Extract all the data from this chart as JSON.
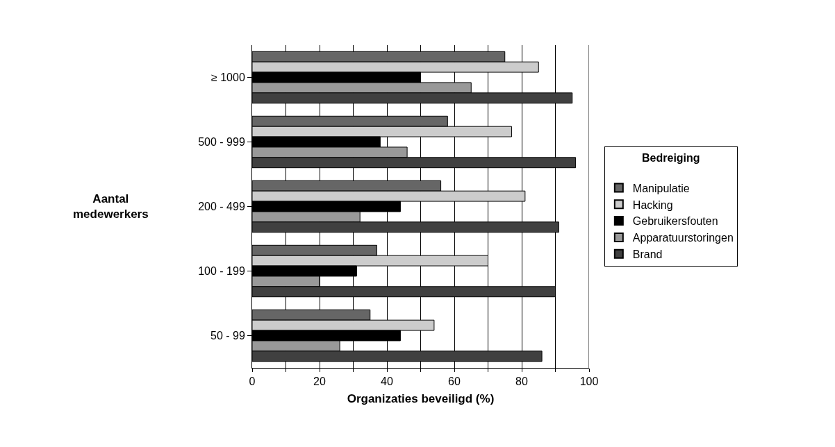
{
  "chart_data": {
    "type": "bar",
    "orientation": "horizontal",
    "xlabel": "Organizaties beveiligd (%)",
    "ylabel": "Aantal\nmedewerkers",
    "legend_title": "Bedreiging",
    "categories": [
      "≥ 1000",
      "500 - 999",
      "200 - 499",
      "100 - 199",
      "50 - 99"
    ],
    "series": [
      {
        "name": "Manipulatie",
        "color": "#666666",
        "values": [
          75,
          58,
          56,
          37,
          35
        ]
      },
      {
        "name": "Hacking",
        "color": "#cccccc",
        "values": [
          85,
          77,
          81,
          70,
          54
        ]
      },
      {
        "name": "Gebruikersfouten",
        "color": "#000000",
        "values": [
          50,
          38,
          44,
          31,
          44
        ]
      },
      {
        "name": "Apparatuurstoringen",
        "color": "#999999",
        "values": [
          65,
          46,
          32,
          20,
          26
        ]
      },
      {
        "name": "Brand",
        "color": "#404040",
        "values": [
          95,
          96,
          91,
          90,
          86
        ]
      }
    ],
    "xlim": [
      0,
      100
    ],
    "xticks": [
      0,
      {
        "value": 10,
        "label": null
      },
      20,
      {
        "value": 30,
        "label": null
      },
      40,
      {
        "value": 50,
        "label": null
      },
      60,
      {
        "value": 70,
        "label": null
      },
      80,
      {
        "value": 90,
        "label": null
      },
      100
    ],
    "grid": "x",
    "legend": "right"
  }
}
